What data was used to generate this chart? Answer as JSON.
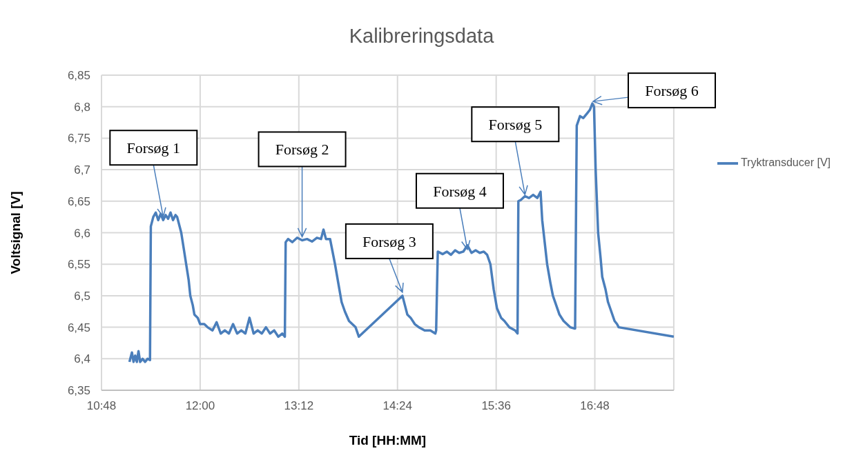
{
  "chart_data": {
    "type": "line",
    "title": "Kalibreringsdata",
    "xlabel": "Tid [HH:MM]",
    "ylabel": "Voltsignal [V]",
    "xlim": [
      10.8,
      17.76
    ],
    "xticks": [
      {
        "value": 10.8,
        "label": "10:48"
      },
      {
        "value": 12,
        "label": "12:00"
      },
      {
        "value": 13.2,
        "label": "13:12"
      },
      {
        "value": 14.4,
        "label": "14:24"
      },
      {
        "value": 15.6,
        "label": "15:36"
      },
      {
        "value": 16.8,
        "label": "16:48"
      }
    ],
    "ylim": [
      6.35,
      6.85
    ],
    "yticks": [
      {
        "value": 6.35,
        "label": "6,35"
      },
      {
        "value": 6.4,
        "label": "6,4"
      },
      {
        "value": 6.45,
        "label": "6,45"
      },
      {
        "value": 6.5,
        "label": "6,5"
      },
      {
        "value": 6.55,
        "label": "6,55"
      },
      {
        "value": 6.6,
        "label": "6,6"
      },
      {
        "value": 6.65,
        "label": "6,65"
      },
      {
        "value": 6.7,
        "label": "6,7"
      },
      {
        "value": 6.75,
        "label": "6,75"
      },
      {
        "value": 6.8,
        "label": "6,8"
      },
      {
        "value": 6.85,
        "label": "6,85"
      }
    ],
    "grid": true,
    "legend": "right",
    "marker": "none",
    "line_style": "solid",
    "series": [
      {
        "name": "Tryktransducer [V]",
        "color": "#4a7ebb",
        "x": [
          11.14,
          11.17,
          11.19,
          11.21,
          11.23,
          11.25,
          11.27,
          11.3,
          11.33,
          11.36,
          11.39,
          11.4,
          11.43,
          11.46,
          11.49,
          11.52,
          11.55,
          11.58,
          11.61,
          11.64,
          11.67,
          11.7,
          11.72,
          11.77,
          11.8,
          11.83,
          11.86,
          11.88,
          11.91,
          11.93,
          11.97,
          12.0,
          12.05,
          12.09,
          12.15,
          12.2,
          12.25,
          12.3,
          12.35,
          12.4,
          12.45,
          12.5,
          12.55,
          12.6,
          12.65,
          12.7,
          12.75,
          12.8,
          12.85,
          12.9,
          12.95,
          13.0,
          13.03,
          13.04,
          13.07,
          13.12,
          13.18,
          13.24,
          13.3,
          13.36,
          13.42,
          13.47,
          13.5,
          13.53,
          13.58,
          13.61,
          13.64,
          13.68,
          13.72,
          13.76,
          13.81,
          13.85,
          13.89,
          13.93,
          14.46,
          14.49,
          14.52,
          14.56,
          14.61,
          14.66,
          14.73,
          14.8,
          14.86,
          14.87,
          14.89,
          14.95,
          15.0,
          15.05,
          15.1,
          15.15,
          15.2,
          15.25,
          15.3,
          15.35,
          15.4,
          15.45,
          15.49,
          15.53,
          15.57,
          15.61,
          15.66,
          15.7,
          15.76,
          15.83,
          15.86,
          15.87,
          15.9,
          15.95,
          16.0,
          16.05,
          16.1,
          16.14,
          16.16,
          16.19,
          16.22,
          16.26,
          16.29,
          16.33,
          16.37,
          16.42,
          16.46,
          16.5,
          16.55,
          16.56,
          16.58,
          16.62,
          16.66,
          16.71,
          16.74,
          16.77,
          16.79,
          16.81,
          16.84,
          16.87,
          16.89,
          16.93,
          16.96,
          17.0,
          17.04,
          17.07,
          17.09,
          17.76
        ],
        "values": [
          6.395,
          6.41,
          6.395,
          6.405,
          6.395,
          6.412,
          6.395,
          6.4,
          6.395,
          6.4,
          6.398,
          6.61,
          6.625,
          6.632,
          6.62,
          6.63,
          6.62,
          6.628,
          6.622,
          6.632,
          6.62,
          6.628,
          6.625,
          6.6,
          6.575,
          6.55,
          6.525,
          6.5,
          6.485,
          6.47,
          6.465,
          6.455,
          6.455,
          6.45,
          6.445,
          6.458,
          6.44,
          6.445,
          6.44,
          6.455,
          6.44,
          6.445,
          6.44,
          6.465,
          6.44,
          6.445,
          6.44,
          6.45,
          6.44,
          6.445,
          6.435,
          6.44,
          6.435,
          6.585,
          6.59,
          6.585,
          6.592,
          6.588,
          6.59,
          6.586,
          6.592,
          6.59,
          6.605,
          6.59,
          6.59,
          6.57,
          6.55,
          6.52,
          6.49,
          6.475,
          6.46,
          6.455,
          6.45,
          6.435,
          6.5,
          6.485,
          6.47,
          6.465,
          6.455,
          6.45,
          6.445,
          6.445,
          6.44,
          6.445,
          6.57,
          6.566,
          6.57,
          6.565,
          6.572,
          6.568,
          6.57,
          6.58,
          6.568,
          6.572,
          6.568,
          6.57,
          6.565,
          6.55,
          6.51,
          6.48,
          6.465,
          6.46,
          6.45,
          6.445,
          6.44,
          6.65,
          6.652,
          6.658,
          6.655,
          6.66,
          6.655,
          6.665,
          6.62,
          6.585,
          6.55,
          6.52,
          6.5,
          6.485,
          6.47,
          6.46,
          6.455,
          6.45,
          6.448,
          6.448,
          6.77,
          6.785,
          6.782,
          6.79,
          6.795,
          6.805,
          6.8,
          6.7,
          6.6,
          6.56,
          6.53,
          6.51,
          6.49,
          6.475,
          6.46,
          6.455,
          6.45,
          6.435
        ]
      }
    ],
    "annotations": [
      {
        "text": "Forsøg 1",
        "x": 11.55,
        "y": 6.62
      },
      {
        "text": "Forsøg 2",
        "x": 13.24,
        "y": 6.588
      },
      {
        "text": "Forsøg 3",
        "x": 14.46,
        "y": 6.5
      },
      {
        "text": "Forsøg 4",
        "x": 15.25,
        "y": 6.568
      },
      {
        "text": "Forsøg 5",
        "x": 15.95,
        "y": 6.655
      },
      "Forsøg 6"
    ]
  }
}
